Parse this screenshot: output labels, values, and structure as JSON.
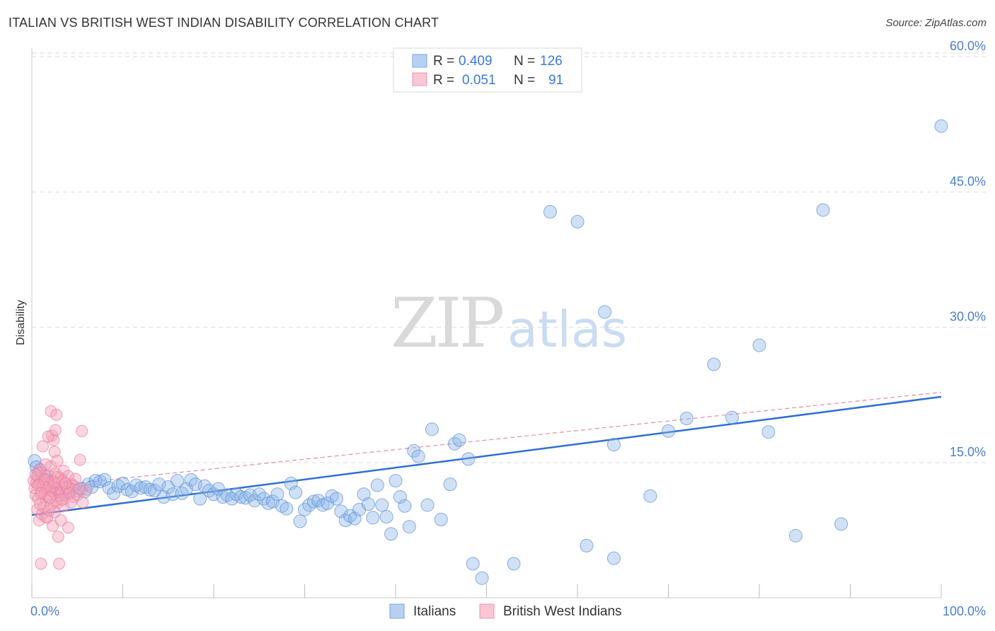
{
  "title": "ITALIAN VS BRITISH WEST INDIAN DISABILITY CORRELATION CHART",
  "source": "Source: ZipAtlas.com",
  "watermark": {
    "part1": "ZIP",
    "part2": "atlas"
  },
  "colors": {
    "blue": "#8ab4e8",
    "blue_stroke": "#5b8fd6",
    "blue_line": "#2f6fd1",
    "pink": "#f4a3bb",
    "pink_stroke": "#e87a9c",
    "pink_line": "#e06d8f",
    "grid": "#dddddd",
    "tick_text": "#4a7fd0"
  },
  "legend": {
    "rows": [
      {
        "r_label": "R =",
        "r_value": "0.409",
        "n_label": "N =",
        "n_value": "126"
      },
      {
        "r_label": "R =",
        "r_value": "0.051",
        "n_label": "N =",
        "n_value": "91"
      }
    ]
  },
  "bottom_legend": [
    "Italians",
    "British West Indians"
  ],
  "chart_data": {
    "type": "scatter",
    "title": "ITALIAN VS BRITISH WEST INDIAN DISABILITY CORRELATION CHART",
    "xlabel": "",
    "ylabel": "Disability",
    "xlim": [
      0,
      100
    ],
    "ylim": [
      0,
      63
    ],
    "x_tick_labels": [
      "0.0%",
      "100.0%"
    ],
    "y_ticks": [
      15,
      30,
      45,
      60
    ],
    "y_tick_labels": [
      "15.0%",
      "30.0%",
      "45.0%",
      "60.0%"
    ],
    "grid": true,
    "legend_position": "top-center",
    "series": [
      {
        "name": "Italians",
        "color": "#8ab4e8",
        "trend": {
          "x": [
            0,
            100
          ],
          "y": [
            9.2,
            22.3
          ]
        },
        "points": [
          [
            0.3,
            15.2
          ],
          [
            0.5,
            14.5
          ],
          [
            0.7,
            13.8
          ],
          [
            0.9,
            14.2
          ],
          [
            1.0,
            13.0
          ],
          [
            1.2,
            12.8
          ],
          [
            1.4,
            13.5
          ],
          [
            1.6,
            12.5
          ],
          [
            1.8,
            13.1
          ],
          [
            2.0,
            12.2
          ],
          [
            2.2,
            12.9
          ],
          [
            2.4,
            11.9
          ],
          [
            2.6,
            12.6
          ],
          [
            2.8,
            12.1
          ],
          [
            3.0,
            12.4
          ],
          [
            3.2,
            11.7
          ],
          [
            3.4,
            12.0
          ],
          [
            3.6,
            11.5
          ],
          [
            3.8,
            12.3
          ],
          [
            4.0,
            11.8
          ],
          [
            4.3,
            12.0
          ],
          [
            4.6,
            12.3
          ],
          [
            5.0,
            11.9
          ],
          [
            5.4,
            12.1
          ],
          [
            5.8,
            11.8
          ],
          [
            6.2,
            12.6
          ],
          [
            6.6,
            12.3
          ],
          [
            7.0,
            13.0
          ],
          [
            7.5,
            12.9
          ],
          [
            8.0,
            13.1
          ],
          [
            8.5,
            12.2
          ],
          [
            9.0,
            11.6
          ],
          [
            9.5,
            12.4
          ],
          [
            10.0,
            12.7
          ],
          [
            10.5,
            12.0
          ],
          [
            11.0,
            11.8
          ],
          [
            11.5,
            12.5
          ],
          [
            12.0,
            12.2
          ],
          [
            12.5,
            12.3
          ],
          [
            13.0,
            12.0
          ],
          [
            13.5,
            11.9
          ],
          [
            14.0,
            12.6
          ],
          [
            14.5,
            11.2
          ],
          [
            15.0,
            12.3
          ],
          [
            15.5,
            11.5
          ],
          [
            16.0,
            13.0
          ],
          [
            16.5,
            11.6
          ],
          [
            17.0,
            12.1
          ],
          [
            17.5,
            13.1
          ],
          [
            18.0,
            12.6
          ],
          [
            18.5,
            11.0
          ],
          [
            19.0,
            12.4
          ],
          [
            19.5,
            11.9
          ],
          [
            20.0,
            11.5
          ],
          [
            20.5,
            12.1
          ],
          [
            21.0,
            11.2
          ],
          [
            21.5,
            11.4
          ],
          [
            22.0,
            11.0
          ],
          [
            22.5,
            11.5
          ],
          [
            23.0,
            11.2
          ],
          [
            23.5,
            11.1
          ],
          [
            24.0,
            11.4
          ],
          [
            24.5,
            10.8
          ],
          [
            25.0,
            11.5
          ],
          [
            25.5,
            11.0
          ],
          [
            26.0,
            10.5
          ],
          [
            26.5,
            10.7
          ],
          [
            27.0,
            11.5
          ],
          [
            27.5,
            10.2
          ],
          [
            28.0,
            9.9
          ],
          [
            28.5,
            12.7
          ],
          [
            29.0,
            11.7
          ],
          [
            29.5,
            8.5
          ],
          [
            30.0,
            9.8
          ],
          [
            30.5,
            10.3
          ],
          [
            31.0,
            10.7
          ],
          [
            31.5,
            10.8
          ],
          [
            32.0,
            10.3
          ],
          [
            32.5,
            10.5
          ],
          [
            33.0,
            11.3
          ],
          [
            33.5,
            11.0
          ],
          [
            34.0,
            9.6
          ],
          [
            34.5,
            8.6
          ],
          [
            35.0,
            9.1
          ],
          [
            35.5,
            8.8
          ],
          [
            36.0,
            9.8
          ],
          [
            36.5,
            11.5
          ],
          [
            37.0,
            10.4
          ],
          [
            37.5,
            8.9
          ],
          [
            38.0,
            12.5
          ],
          [
            38.5,
            10.3
          ],
          [
            39.0,
            9.0
          ],
          [
            39.5,
            7.1
          ],
          [
            40.0,
            13.0
          ],
          [
            40.5,
            11.2
          ],
          [
            41.0,
            10.2
          ],
          [
            41.5,
            7.9
          ],
          [
            42.0,
            16.3
          ],
          [
            42.5,
            15.7
          ],
          [
            43.5,
            10.3
          ],
          [
            44.0,
            18.7
          ],
          [
            45.0,
            8.7
          ],
          [
            46.0,
            12.6
          ],
          [
            46.5,
            17.1
          ],
          [
            47.0,
            17.5
          ],
          [
            48.0,
            15.4
          ],
          [
            48.5,
            3.8
          ],
          [
            49.5,
            2.2
          ],
          [
            53.0,
            3.8
          ],
          [
            57.0,
            42.8
          ],
          [
            60.0,
            41.7
          ],
          [
            61.0,
            5.8
          ],
          [
            63.0,
            31.7
          ],
          [
            64.0,
            17.0
          ],
          [
            64.0,
            4.4
          ],
          [
            68.0,
            11.3
          ],
          [
            70.0,
            18.5
          ],
          [
            72.0,
            19.9
          ],
          [
            75.0,
            25.9
          ],
          [
            77.0,
            20.0
          ],
          [
            80.0,
            28.0
          ],
          [
            81.0,
            18.4
          ],
          [
            84.0,
            6.9
          ],
          [
            87.0,
            43.0
          ],
          [
            89.0,
            8.2
          ],
          [
            100.0,
            52.3
          ]
        ]
      },
      {
        "name": "British West Indians",
        "color": "#f4a3bb",
        "trend": {
          "x": [
            0,
            100
          ],
          "y": [
            12.2,
            22.8
          ]
        },
        "points": [
          [
            0.2,
            13.0
          ],
          [
            0.3,
            12.2
          ],
          [
            0.4,
            11.4
          ],
          [
            0.5,
            12.8
          ],
          [
            0.6,
            13.5
          ],
          [
            0.7,
            11.0
          ],
          [
            0.8,
            14.2
          ],
          [
            0.9,
            12.6
          ],
          [
            1.0,
            13.9
          ],
          [
            1.1,
            11.8
          ],
          [
            1.2,
            12.3
          ],
          [
            1.3,
            13.2
          ],
          [
            1.4,
            11.5
          ],
          [
            1.5,
            12.9
          ],
          [
            1.6,
            10.8
          ],
          [
            1.7,
            12.0
          ],
          [
            1.8,
            13.6
          ],
          [
            1.9,
            11.2
          ],
          [
            2.0,
            12.5
          ],
          [
            2.1,
            14.6
          ],
          [
            2.2,
            11.9
          ],
          [
            2.3,
            13.0
          ],
          [
            2.4,
            12.4
          ],
          [
            2.5,
            11.6
          ],
          [
            2.6,
            13.8
          ],
          [
            2.7,
            12.1
          ],
          [
            2.8,
            10.5
          ],
          [
            2.9,
            12.7
          ],
          [
            3.0,
            11.3
          ],
          [
            3.1,
            13.3
          ],
          [
            3.2,
            12.0
          ],
          [
            3.3,
            11.7
          ],
          [
            3.4,
            12.9
          ],
          [
            3.5,
            14.1
          ],
          [
            3.6,
            11.0
          ],
          [
            3.8,
            12.4
          ],
          [
            4.0,
            13.5
          ],
          [
            4.2,
            11.8
          ],
          [
            4.4,
            12.6
          ],
          [
            4.6,
            11.2
          ],
          [
            0.6,
            9.8
          ],
          [
            0.8,
            8.6
          ],
          [
            1.1,
            9.3
          ],
          [
            1.3,
            10.1
          ],
          [
            1.5,
            9.0
          ],
          [
            1.7,
            8.9
          ],
          [
            1.9,
            9.7
          ],
          [
            2.1,
            10.3
          ],
          [
            2.3,
            8.0
          ],
          [
            2.5,
            9.5
          ],
          [
            2.7,
            10.8
          ],
          [
            2.9,
            6.8
          ],
          [
            3.2,
            8.6
          ],
          [
            3.5,
            10.2
          ],
          [
            4.0,
            7.8
          ],
          [
            4.3,
            10.6
          ],
          [
            1.0,
            3.8
          ],
          [
            3.0,
            3.8
          ],
          [
            2.1,
            20.7
          ],
          [
            2.7,
            20.3
          ],
          [
            2.2,
            18.0
          ],
          [
            2.4,
            17.5
          ],
          [
            2.5,
            16.2
          ],
          [
            1.2,
            16.8
          ],
          [
            2.8,
            15.2
          ],
          [
            5.5,
            18.5
          ],
          [
            5.3,
            15.3
          ],
          [
            1.8,
            17.9
          ],
          [
            2.6,
            18.6
          ],
          [
            1.5,
            14.8
          ],
          [
            3.0,
            12.8
          ],
          [
            3.4,
            13.0
          ],
          [
            3.9,
            12.2
          ],
          [
            4.5,
            12.5
          ],
          [
            5.0,
            11.4
          ],
          [
            5.6,
            10.6
          ],
          [
            6.0,
            12.0
          ],
          [
            0.4,
            13.7
          ],
          [
            0.9,
            10.4
          ],
          [
            1.4,
            13.1
          ],
          [
            1.6,
            12.2
          ],
          [
            2.0,
            11.1
          ],
          [
            2.4,
            12.8
          ],
          [
            2.8,
            13.4
          ],
          [
            3.3,
            10.9
          ],
          [
            3.7,
            12.7
          ],
          [
            4.1,
            11.6
          ],
          [
            4.8,
            13.2
          ],
          [
            5.2,
            12.1
          ],
          [
            0.7,
            12.5
          ],
          [
            1.0,
            11.6
          ]
        ]
      }
    ]
  }
}
